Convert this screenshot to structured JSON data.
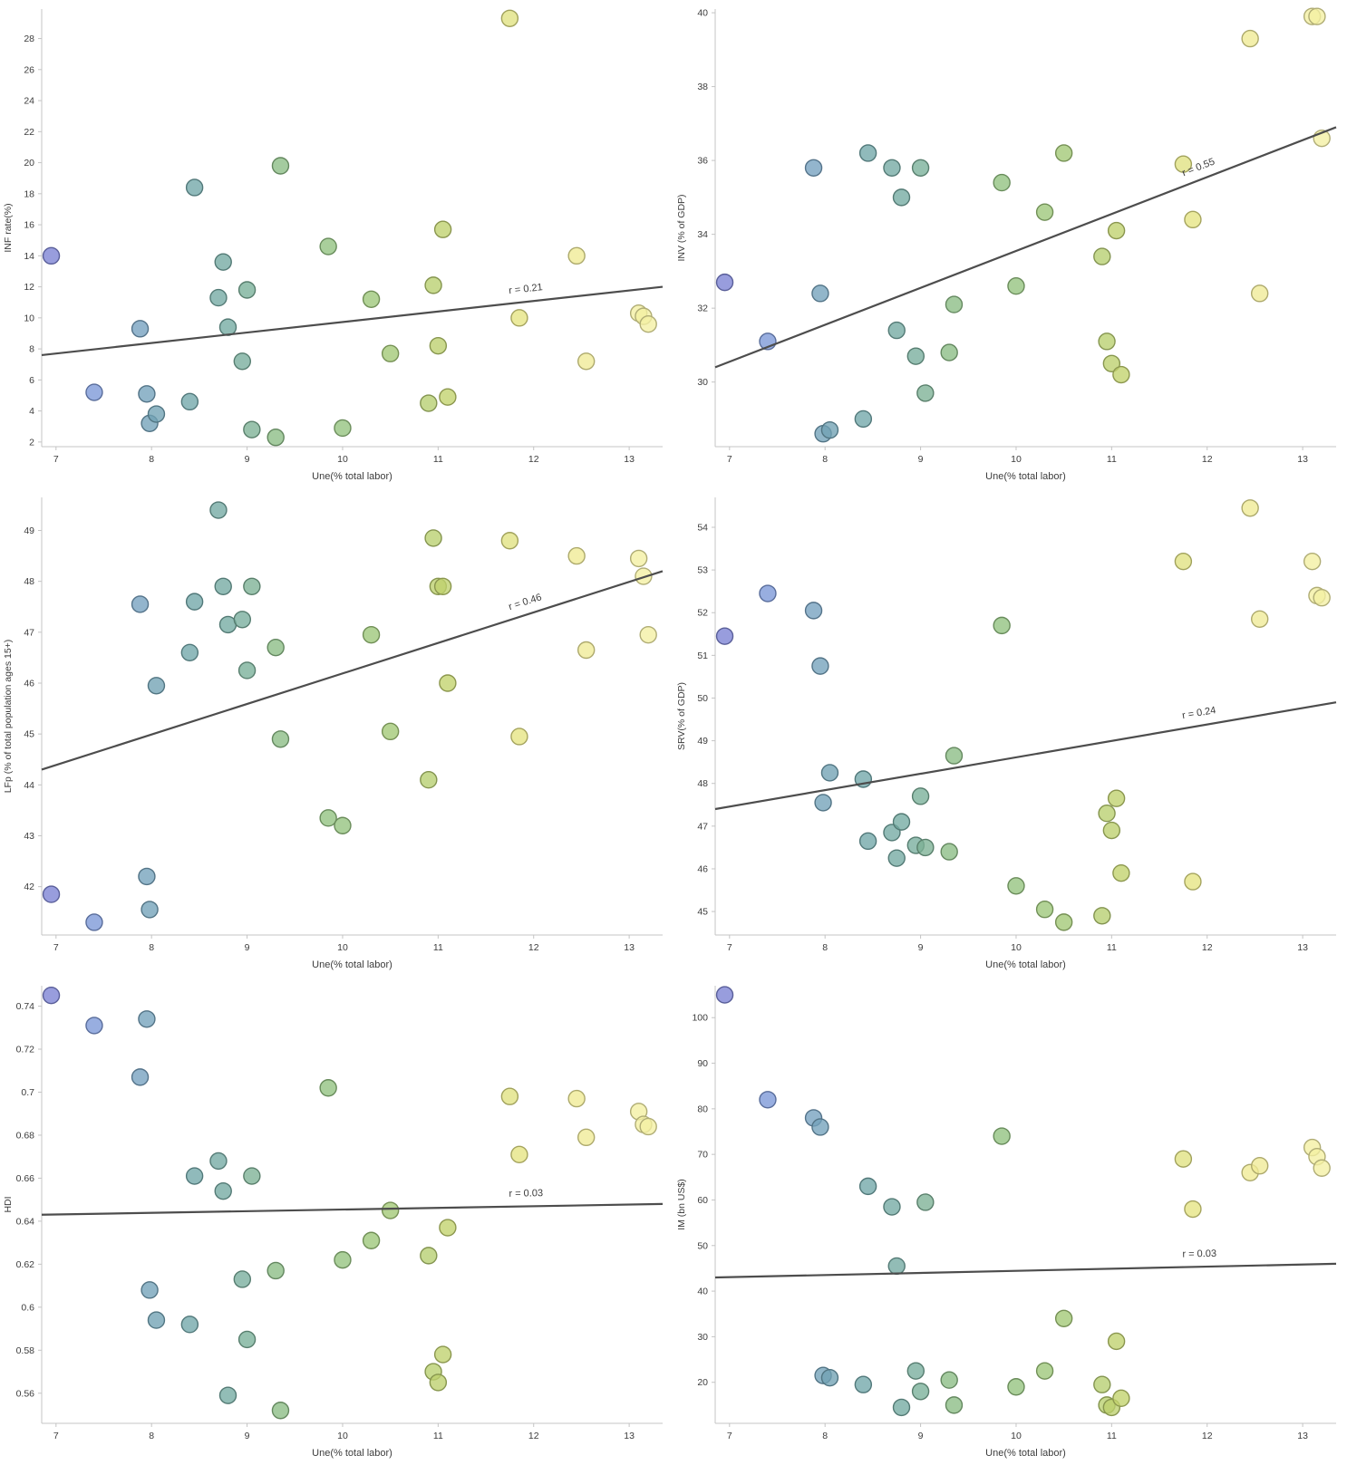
{
  "page": {
    "background": "#ffffff",
    "axis_color": "#c4c4c4",
    "trend_color": "#4d4d4d",
    "text_color": "#3c3c3c",
    "point_radius": 9,
    "fill_opacity": 0.78
  },
  "color_scale": {
    "stops": [
      {
        "x": 6.9,
        "color": "#7b80d4"
      },
      {
        "x": 7.5,
        "color": "#7b9cd8"
      },
      {
        "x": 8.15,
        "color": "#6fa3ae"
      },
      {
        "x": 8.9,
        "color": "#74ab9f"
      },
      {
        "x": 9.3,
        "color": "#8abc84"
      },
      {
        "x": 10.0,
        "color": "#93c37d"
      },
      {
        "x": 10.6,
        "color": "#a5c973"
      },
      {
        "x": 11.1,
        "color": "#c2d26c"
      },
      {
        "x": 11.9,
        "color": "#e7e584"
      },
      {
        "x": 12.5,
        "color": "#f0eb95"
      },
      {
        "x": 13.2,
        "color": "#f4f0a3"
      }
    ]
  },
  "chart_data": [
    {
      "type": "scatter",
      "xlabel": "Une(% total labor)",
      "ylabel": "INF rate(%)",
      "r_label": "r = 0.21",
      "xlim": [
        6.85,
        13.35
      ],
      "ylim": [
        1.7,
        29.9
      ],
      "xticks": [
        7,
        8,
        9,
        10,
        11,
        12,
        13
      ],
      "yticks": [
        2,
        4,
        6,
        8,
        10,
        12,
        14,
        16,
        18,
        20,
        22,
        24,
        26,
        28
      ],
      "trend": {
        "x1": 6.85,
        "y1": 7.6,
        "x2": 13.35,
        "y2": 12.0
      },
      "points": [
        [
          6.95,
          14.0
        ],
        [
          7.4,
          5.2
        ],
        [
          7.88,
          9.3
        ],
        [
          7.95,
          5.1
        ],
        [
          7.98,
          3.2
        ],
        [
          8.05,
          3.8
        ],
        [
          8.4,
          4.6
        ],
        [
          8.45,
          18.4
        ],
        [
          8.7,
          11.3
        ],
        [
          8.75,
          13.6
        ],
        [
          8.8,
          9.4
        ],
        [
          8.95,
          7.2
        ],
        [
          9.0,
          11.8
        ],
        [
          9.05,
          2.8
        ],
        [
          9.3,
          2.3
        ],
        [
          9.35,
          19.8
        ],
        [
          9.85,
          14.6
        ],
        [
          10.0,
          2.9
        ],
        [
          10.3,
          11.2
        ],
        [
          10.5,
          7.7
        ],
        [
          10.9,
          4.5
        ],
        [
          10.95,
          12.1
        ],
        [
          11.0,
          8.2
        ],
        [
          11.05,
          15.7
        ],
        [
          11.1,
          4.9
        ],
        [
          11.75,
          29.3
        ],
        [
          11.85,
          10.0
        ],
        [
          12.45,
          14.0
        ],
        [
          12.55,
          7.2
        ],
        [
          13.1,
          10.3
        ],
        [
          13.15,
          10.1
        ],
        [
          13.2,
          9.6
        ]
      ]
    },
    {
      "type": "scatter",
      "xlabel": "Une(% total labor)",
      "ylabel": "INV (% of GDP)",
      "r_label": "r = 0.55",
      "xlim": [
        6.85,
        13.35
      ],
      "ylim": [
        28.25,
        40.1
      ],
      "xticks": [
        7,
        8,
        9,
        10,
        11,
        12,
        13
      ],
      "yticks": [
        30,
        32,
        34,
        36,
        38,
        40
      ],
      "trend": {
        "x1": 6.85,
        "y1": 30.4,
        "x2": 13.35,
        "y2": 36.9
      },
      "points": [
        [
          6.95,
          32.7
        ],
        [
          7.4,
          31.1
        ],
        [
          7.88,
          35.8
        ],
        [
          7.95,
          32.4
        ],
        [
          7.98,
          28.6
        ],
        [
          8.05,
          28.7
        ],
        [
          8.4,
          29.0
        ],
        [
          8.45,
          36.2
        ],
        [
          8.7,
          35.8
        ],
        [
          8.75,
          31.4
        ],
        [
          8.8,
          35.0
        ],
        [
          8.95,
          30.7
        ],
        [
          9.0,
          35.8
        ],
        [
          9.05,
          29.7
        ],
        [
          9.3,
          30.8
        ],
        [
          9.35,
          32.1
        ],
        [
          9.85,
          35.4
        ],
        [
          10.0,
          32.6
        ],
        [
          10.3,
          34.6
        ],
        [
          10.5,
          36.2
        ],
        [
          10.9,
          33.4
        ],
        [
          10.95,
          31.1
        ],
        [
          11.0,
          30.5
        ],
        [
          11.05,
          34.1
        ],
        [
          11.1,
          30.2
        ],
        [
          11.75,
          35.9
        ],
        [
          11.85,
          34.4
        ],
        [
          12.45,
          39.3
        ],
        [
          12.55,
          32.4
        ],
        [
          13.1,
          39.9
        ],
        [
          13.15,
          39.9
        ],
        [
          13.2,
          36.6
        ]
      ]
    },
    {
      "type": "scatter",
      "xlabel": "Une(% total labor)",
      "ylabel": "LFp (% of total population ages 15+)",
      "r_label": "r = 0.46",
      "xlim": [
        6.85,
        13.35
      ],
      "ylim": [
        41.05,
        49.65
      ],
      "xticks": [
        7,
        8,
        9,
        10,
        11,
        12,
        13
      ],
      "yticks": [
        42,
        43,
        44,
        45,
        46,
        47,
        48,
        49
      ],
      "trend": {
        "x1": 6.85,
        "y1": 44.3,
        "x2": 13.35,
        "y2": 48.2
      },
      "points": [
        [
          6.95,
          41.85
        ],
        [
          7.4,
          41.3
        ],
        [
          7.88,
          47.55
        ],
        [
          7.95,
          42.2
        ],
        [
          7.98,
          41.55
        ],
        [
          8.05,
          45.95
        ],
        [
          8.4,
          46.6
        ],
        [
          8.45,
          47.6
        ],
        [
          8.7,
          49.4
        ],
        [
          8.75,
          47.9
        ],
        [
          8.8,
          47.15
        ],
        [
          8.95,
          47.25
        ],
        [
          9.0,
          46.25
        ],
        [
          9.05,
          47.9
        ],
        [
          9.3,
          46.7
        ],
        [
          9.35,
          44.9
        ],
        [
          9.85,
          43.35
        ],
        [
          10.0,
          43.2
        ],
        [
          10.3,
          46.95
        ],
        [
          10.5,
          45.05
        ],
        [
          10.9,
          44.1
        ],
        [
          10.95,
          48.85
        ],
        [
          11.0,
          47.9
        ],
        [
          11.05,
          47.9
        ],
        [
          11.1,
          46.0
        ],
        [
          11.75,
          48.8
        ],
        [
          11.85,
          44.95
        ],
        [
          12.45,
          48.5
        ],
        [
          12.55,
          46.65
        ],
        [
          13.1,
          48.45
        ],
        [
          13.15,
          48.1
        ],
        [
          13.2,
          46.95
        ]
      ]
    },
    {
      "type": "scatter",
      "xlabel": "Une(% total labor)",
      "ylabel": "SRV(% of GDP)",
      "r_label": "r = 0.24",
      "xlim": [
        6.85,
        13.35
      ],
      "ylim": [
        44.45,
        54.7
      ],
      "xticks": [
        7,
        8,
        9,
        10,
        11,
        12,
        13
      ],
      "yticks": [
        45,
        46,
        47,
        48,
        49,
        50,
        51,
        52,
        53,
        54
      ],
      "trend": {
        "x1": 6.85,
        "y1": 47.4,
        "x2": 13.35,
        "y2": 49.9
      },
      "points": [
        [
          6.95,
          51.45
        ],
        [
          7.4,
          52.45
        ],
        [
          7.88,
          52.05
        ],
        [
          7.95,
          50.75
        ],
        [
          7.98,
          47.55
        ],
        [
          8.05,
          48.25
        ],
        [
          8.4,
          48.1
        ],
        [
          8.45,
          46.65
        ],
        [
          8.7,
          46.85
        ],
        [
          8.75,
          46.25
        ],
        [
          8.8,
          47.1
        ],
        [
          8.95,
          46.55
        ],
        [
          9.0,
          47.7
        ],
        [
          9.05,
          46.5
        ],
        [
          9.3,
          46.4
        ],
        [
          9.35,
          48.65
        ],
        [
          9.85,
          51.7
        ],
        [
          10.0,
          45.6
        ],
        [
          10.3,
          45.05
        ],
        [
          10.5,
          44.75
        ],
        [
          10.9,
          44.9
        ],
        [
          10.95,
          47.3
        ],
        [
          11.0,
          46.9
        ],
        [
          11.05,
          47.65
        ],
        [
          11.1,
          45.9
        ],
        [
          11.75,
          53.2
        ],
        [
          11.85,
          45.7
        ],
        [
          12.45,
          54.45
        ],
        [
          12.55,
          51.85
        ],
        [
          13.1,
          53.2
        ],
        [
          13.15,
          52.4
        ],
        [
          13.2,
          52.35
        ]
      ]
    },
    {
      "type": "scatter",
      "xlabel": "Une(% total labor)",
      "ylabel": "HDI",
      "r_label": "r = 0.03",
      "xlim": [
        6.85,
        13.35
      ],
      "ylim": [
        0.546,
        0.7495
      ],
      "xticks": [
        7,
        8,
        9,
        10,
        11,
        12,
        13
      ],
      "yticks": [
        0.56,
        0.58,
        0.6,
        0.62,
        0.64,
        0.66,
        0.68,
        0.7,
        0.72,
        0.74
      ],
      "trend": {
        "x1": 6.85,
        "y1": 0.643,
        "x2": 13.35,
        "y2": 0.648
      },
      "points": [
        [
          6.95,
          0.745
        ],
        [
          7.4,
          0.731
        ],
        [
          7.88,
          0.707
        ],
        [
          7.95,
          0.734
        ],
        [
          7.98,
          0.608
        ],
        [
          8.05,
          0.594
        ],
        [
          8.4,
          0.592
        ],
        [
          8.45,
          0.661
        ],
        [
          8.7,
          0.668
        ],
        [
          8.75,
          0.654
        ],
        [
          8.8,
          0.559
        ],
        [
          8.95,
          0.613
        ],
        [
          9.0,
          0.585
        ],
        [
          9.05,
          0.661
        ],
        [
          9.3,
          0.617
        ],
        [
          9.35,
          0.552
        ],
        [
          9.85,
          0.702
        ],
        [
          10.0,
          0.622
        ],
        [
          10.3,
          0.631
        ],
        [
          10.5,
          0.645
        ],
        [
          10.9,
          0.624
        ],
        [
          10.95,
          0.57
        ],
        [
          11.0,
          0.565
        ],
        [
          11.05,
          0.578
        ],
        [
          11.1,
          0.637
        ],
        [
          11.75,
          0.698
        ],
        [
          11.85,
          0.671
        ],
        [
          12.45,
          0.697
        ],
        [
          12.55,
          0.679
        ],
        [
          13.1,
          0.691
        ],
        [
          13.15,
          0.685
        ],
        [
          13.2,
          0.684
        ]
      ]
    },
    {
      "type": "scatter",
      "xlabel": "Une(% total labor)",
      "ylabel": "IM (bn US$)",
      "r_label": "r = 0.03",
      "xlim": [
        6.85,
        13.35
      ],
      "ylim": [
        11,
        107
      ],
      "xticks": [
        7,
        8,
        9,
        10,
        11,
        12,
        13
      ],
      "yticks": [
        20,
        30,
        40,
        50,
        60,
        70,
        80,
        90,
        100
      ],
      "trend": {
        "x1": 6.85,
        "y1": 43.0,
        "x2": 13.35,
        "y2": 46.0
      },
      "points": [
        [
          6.95,
          105
        ],
        [
          7.4,
          82
        ],
        [
          7.88,
          78
        ],
        [
          7.95,
          76
        ],
        [
          7.98,
          21.5
        ],
        [
          8.05,
          21
        ],
        [
          8.4,
          19.5
        ],
        [
          8.45,
          63
        ],
        [
          8.7,
          58.5
        ],
        [
          8.75,
          45.5
        ],
        [
          8.8,
          14.5
        ],
        [
          8.95,
          22.5
        ],
        [
          9.0,
          18
        ],
        [
          9.05,
          59.5
        ],
        [
          9.3,
          20.5
        ],
        [
          9.35,
          15
        ],
        [
          9.85,
          74
        ],
        [
          10.0,
          19
        ],
        [
          10.3,
          22.5
        ],
        [
          10.5,
          34
        ],
        [
          10.9,
          19.5
        ],
        [
          10.95,
          15
        ],
        [
          11.0,
          14.5
        ],
        [
          11.05,
          29
        ],
        [
          11.1,
          16.5
        ],
        [
          11.75,
          69
        ],
        [
          11.85,
          58
        ],
        [
          12.45,
          66
        ],
        [
          12.55,
          67.5
        ],
        [
          13.1,
          71.5
        ],
        [
          13.15,
          69.5
        ],
        [
          13.2,
          67
        ]
      ]
    }
  ]
}
